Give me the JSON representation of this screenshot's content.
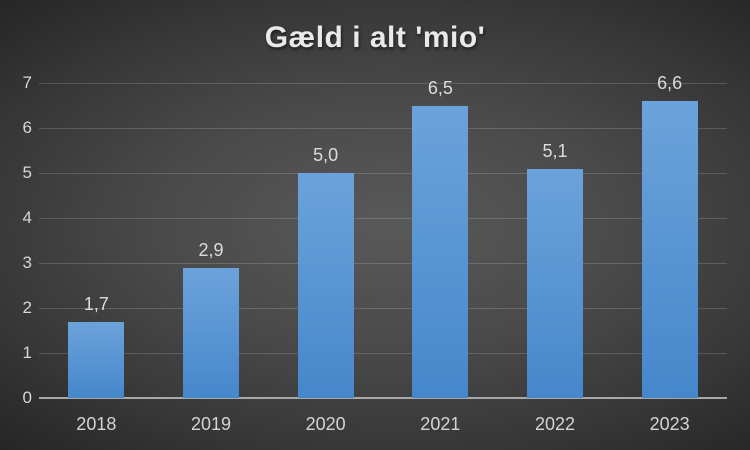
{
  "title": "Gæld i alt 'mio'",
  "chart_data": {
    "type": "bar",
    "title": "Gæld i alt 'mio'",
    "categories": [
      "2018",
      "2019",
      "2020",
      "2021",
      "2022",
      "2023"
    ],
    "values": [
      1.7,
      2.9,
      5.0,
      6.5,
      5.1,
      6.6
    ],
    "value_labels": [
      "1,7",
      "2,9",
      "5,0",
      "6,5",
      "5,1",
      "6,6"
    ],
    "xlabel": "",
    "ylabel": "",
    "ylim": [
      0,
      7
    ],
    "yticks": [
      "0",
      "1",
      "2",
      "3",
      "4",
      "5",
      "6",
      "7"
    ],
    "grid": true,
    "legend": false,
    "colors": {
      "bar_gradient_top": "#6ca2db",
      "bar_gradient_bottom": "#4587cb",
      "background_center": "#595959",
      "background_edge": "#232323",
      "gridline": "rgba(255,255,255,0.16)",
      "axis_line": "#a8a8a8",
      "title_text": "#e9e9e9",
      "label_text": "#d6d6d6"
    }
  }
}
